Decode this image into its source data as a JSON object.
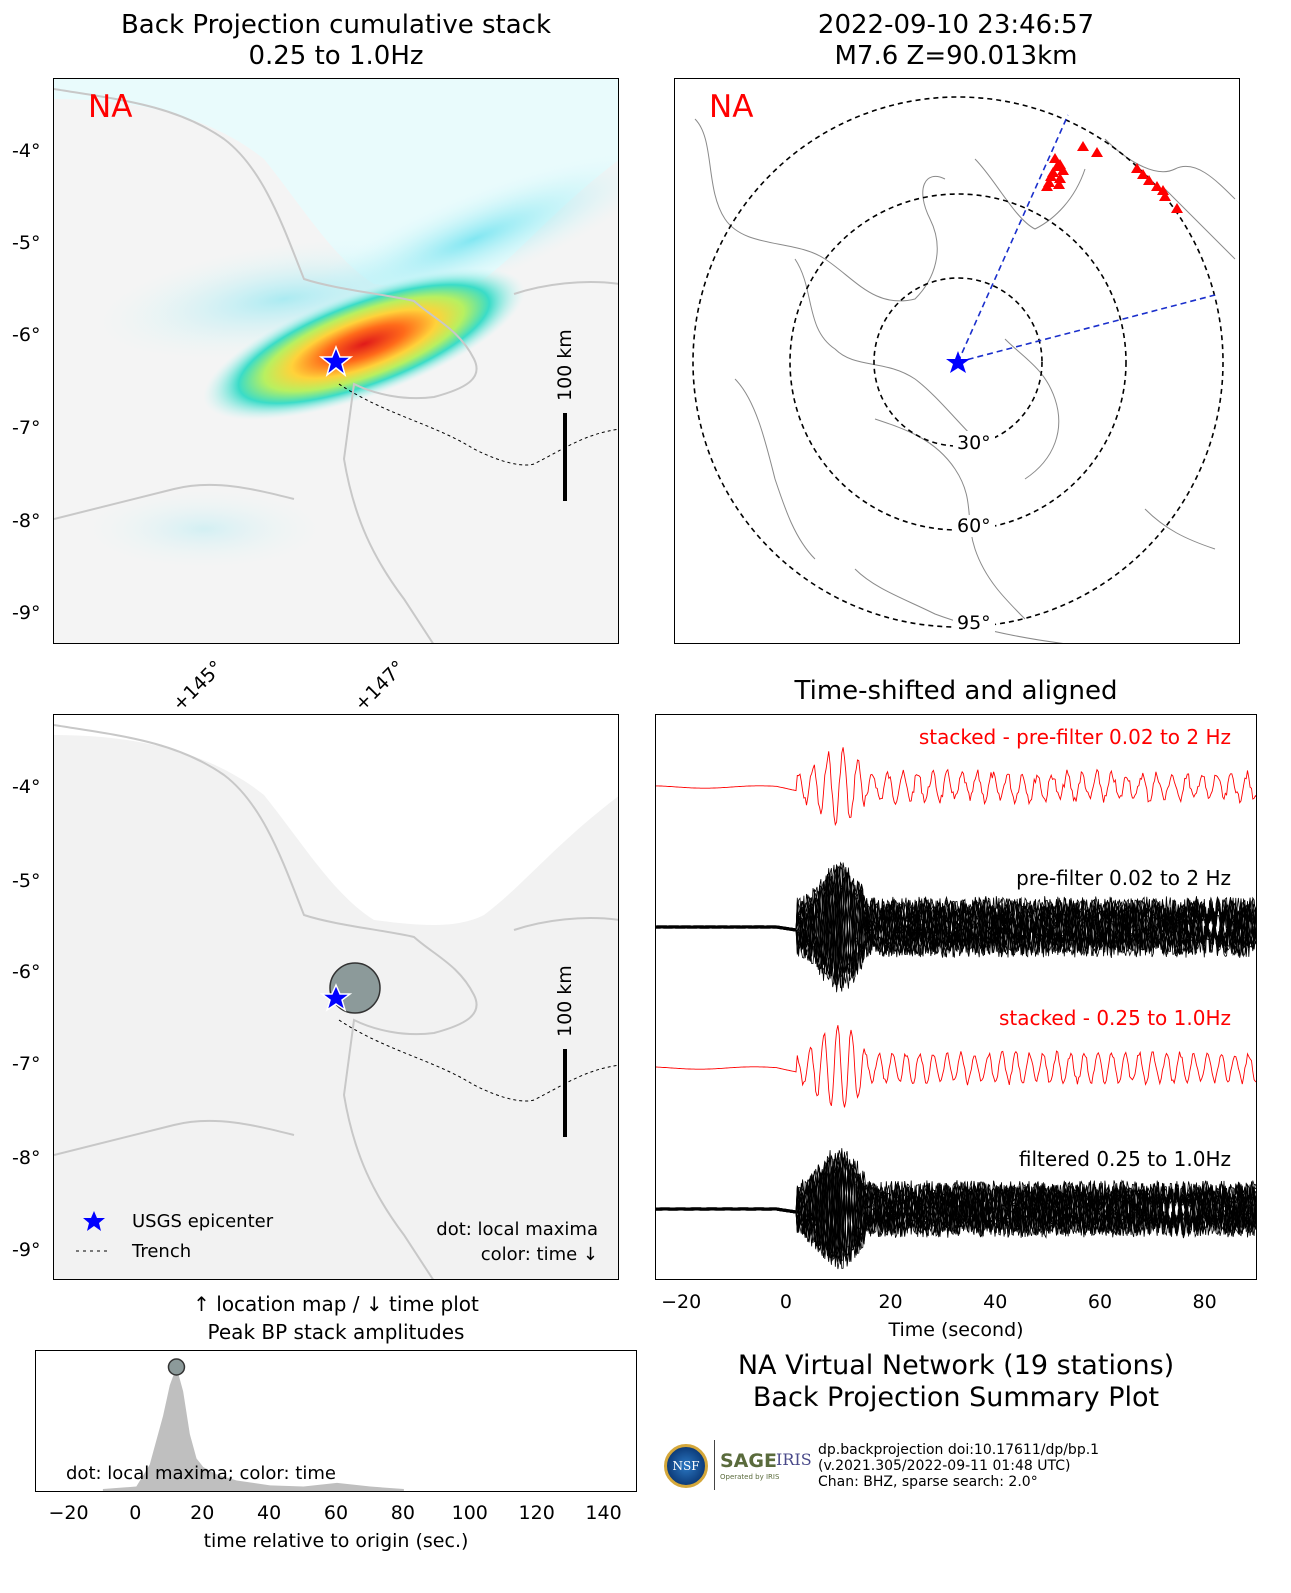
{
  "top_left": {
    "title_line1": "Back Projection cumulative stack",
    "title_line2": "0.25 to 1.0Hz",
    "network_label": "NA",
    "scale_label": "100 km",
    "lat_ticks": [
      "-4°",
      "-5°",
      "-6°",
      "-7°",
      "-8°",
      "-9°"
    ],
    "lon_ticks": [
      "+145°",
      "+147°"
    ]
  },
  "top_right": {
    "title_line1": "2022-09-10 23:46:57",
    "title_line2": "M7.6 Z=90.013km",
    "network_label": "NA",
    "ring_labels": [
      "30°",
      "60°",
      "95°"
    ]
  },
  "mid_left": {
    "lat_ticks": [
      "-4°",
      "-5°",
      "-6°",
      "-7°",
      "-8°",
      "-9°"
    ],
    "scale_label": "100 km",
    "legend_epicenter": "USGS epicenter",
    "legend_trench": "Trench",
    "note_line1": "dot: local maxima",
    "note_line2": "color: time ↓",
    "caption_line1": "↑ location map / ↓ time plot",
    "caption_line2": "Peak BP stack amplitudes"
  },
  "bottom_left": {
    "note": "dot: local maxima; color: time",
    "xlabel": "time relative to origin (sec.)",
    "x_ticks": [
      "−20",
      "0",
      "20",
      "40",
      "60",
      "80",
      "100",
      "120",
      "140"
    ]
  },
  "right_traces": {
    "title": "Time-shifted and aligned",
    "label_stacked_pre": "stacked - pre-filter 0.02 to 2 Hz",
    "label_pre": "pre-filter 0.02 to 2 Hz",
    "label_stacked_filt": "stacked - 0.25 to 1.0Hz",
    "label_filt": "filtered 0.25 to 1.0Hz",
    "xlabel": "Time (second)",
    "x_ticks": [
      "−20",
      "0",
      "20",
      "40",
      "60",
      "80"
    ]
  },
  "summary": {
    "line1": "NA Virtual Network (19 stations)",
    "line2": "Back Projection Summary Plot",
    "info1": "dp.backprojection doi:10.17611/dp/bp.1",
    "info2": "(v.2021.305/2022-09-11 01:48 UTC)",
    "info3": "Chan: BHZ, sparse search: 2.0°",
    "logo_nsf": "NSF",
    "logo_sage": "SAGE",
    "logo_iris": "IRIS",
    "logo_sub": "Operated by IRIS"
  },
  "colors": {
    "red": "#ff0000",
    "blue": "#0000ff",
    "land": "#f2f2f2",
    "coast": "#c8c8c8",
    "stack_fill": "#bfbfbf",
    "dot": "#8c9a9a"
  },
  "chart_data": [
    {
      "type": "heatmap",
      "title": "Back Projection cumulative stack 0.25 to 1.0Hz",
      "ylim": [
        -9.3,
        -3.3
      ],
      "y_ticks": [
        -4,
        -5,
        -6,
        -7,
        -8,
        -9
      ],
      "x_ticks": [
        145,
        147
      ],
      "peak": {
        "lon": 146.9,
        "lat": -6.0
      },
      "epicenter": {
        "lon": 146.5,
        "lat": -6.25
      }
    },
    {
      "type": "line",
      "title": "Time-shifted and aligned",
      "xlabel": "Time (second)",
      "xlim": [
        -25,
        90
      ],
      "x_ticks": [
        -20,
        0,
        20,
        40,
        60,
        80
      ],
      "series_names": [
        "stacked - pre-filter 0.02 to 2 Hz",
        "pre-filter 0.02 to 2 Hz",
        "stacked - 0.25 to 1.0Hz",
        "filtered 0.25 to 1.0Hz"
      ]
    },
    {
      "type": "area",
      "xlabel": "time relative to origin (sec.)",
      "xlim": [
        -30,
        150
      ],
      "x_ticks": [
        -20,
        0,
        20,
        40,
        60,
        80,
        100,
        120,
        140
      ],
      "x": [
        -10,
        0,
        4,
        8,
        10,
        12,
        14,
        16,
        18,
        20,
        24,
        30,
        40,
        50,
        60,
        70,
        80
      ],
      "values": [
        0,
        0.02,
        0.2,
        0.6,
        0.85,
        1.0,
        0.8,
        0.45,
        0.25,
        0.18,
        0.12,
        0.07,
        0.03,
        0.02,
        0.05,
        0.02,
        0
      ],
      "peak_dot": {
        "x": 12,
        "y": 1.0
      }
    }
  ]
}
